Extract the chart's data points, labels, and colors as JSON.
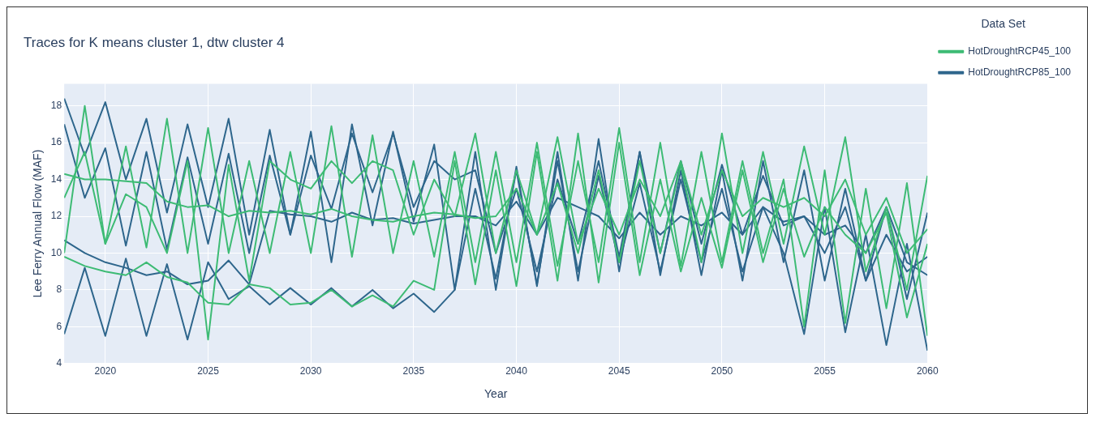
{
  "chart_data": {
    "type": "line",
    "title": "Traces for K means cluster 1, dtw cluster 4",
    "xlabel": "Year",
    "ylabel": "Lee Ferry Annual Flow (MAF)",
    "legend_title": "Data Set",
    "legend": "top right",
    "grid": true,
    "marker": "none",
    "line_style": "solid",
    "x": [
      2018,
      2019,
      2020,
      2021,
      2022,
      2023,
      2024,
      2025,
      2026,
      2027,
      2028,
      2029,
      2030,
      2031,
      2032,
      2033,
      2034,
      2035,
      2036,
      2037,
      2038,
      2039,
      2040,
      2041,
      2042,
      2043,
      2044,
      2045,
      2046,
      2047,
      2048,
      2049,
      2050,
      2051,
      2052,
      2053,
      2054,
      2055,
      2056,
      2057,
      2058,
      2059,
      2060
    ],
    "xlim": [
      2018,
      2060
    ],
    "xticks": [
      2020,
      2025,
      2030,
      2035,
      2040,
      2045,
      2050,
      2055,
      2060
    ],
    "ylim": [
      4,
      19.2
    ],
    "yticks": [
      4,
      6,
      8,
      10,
      12,
      14,
      16,
      18
    ],
    "series": [
      {
        "name": "HotDroughtRCP45_100",
        "color": "#3dbb74",
        "values": [
          10,
          18,
          10.5,
          15.8,
          10.3,
          17.3,
          10,
          16.8,
          10,
          15,
          10,
          15.5,
          10,
          16.9,
          9.8,
          16.4,
          10,
          15,
          9.8,
          15.5,
          9.5,
          15.5,
          9.5,
          16,
          9.3,
          15,
          9.5,
          16.8,
          9.5,
          16,
          9.3,
          15.5,
          9.5,
          15,
          10,
          14,
          6,
          14.5,
          6.2,
          13.5,
          7,
          13.8,
          5.5
        ]
      },
      {
        "color": "#3dbb74",
        "values": [
          14.3,
          14,
          14,
          13.9,
          13.8,
          12.8,
          12.5,
          12.6,
          12,
          12.3,
          12.2,
          12.3,
          12.1,
          12.4,
          12,
          11.8,
          11.7,
          12,
          12.2,
          12.1,
          11.9,
          12,
          13.5,
          11,
          13.8,
          10,
          14.5,
          9.5,
          15,
          10,
          14.8,
          9.5,
          16.5,
          10,
          15.5,
          10.5,
          15.8,
          11,
          16.3,
          9,
          12.5,
          8,
          14.2
        ]
      },
      {
        "color": "#3dbb74",
        "values": [
          9.8,
          9.3,
          9,
          8.8,
          9.5,
          8.7,
          8.4,
          7.3,
          7.2,
          8.3,
          8.1,
          7.2,
          7.3,
          8,
          7.1,
          7.7,
          7.1,
          8.5,
          8,
          15,
          8.3,
          14.5,
          8.2,
          15.5,
          8.5,
          16.5,
          8.4,
          16,
          8.8,
          14,
          9,
          13,
          9.2,
          14.5,
          9.5,
          13.5,
          9.8,
          12.5,
          11,
          10,
          12.2,
          6.5,
          10.5
        ]
      },
      {
        "color": "#3dbb74",
        "values": [
          13,
          15.5,
          10.5,
          13.2,
          12.5,
          10,
          15,
          5.3,
          14.8,
          8.5,
          15,
          14,
          13.5,
          15,
          13.8,
          15,
          14.5,
          11,
          14,
          12,
          16.5,
          10,
          14.5,
          11,
          16.3,
          10.5,
          13.5,
          11,
          14,
          12,
          15,
          11,
          14.5,
          12,
          13,
          12.5,
          13,
          12,
          14,
          11,
          13,
          10,
          11.3
        ]
      },
      {
        "name": "HotDroughtRCP85_100",
        "color": "#2e668c",
        "values": [
          18.4,
          15.3,
          18.2,
          14,
          17.3,
          12.2,
          17,
          12.5,
          17.3,
          11,
          16.7,
          11,
          16.6,
          9.5,
          17,
          11.5,
          16.6,
          11.7,
          15.9,
          8,
          15.5,
          8,
          14.7,
          8.2,
          15.5,
          8.5,
          16.2,
          9,
          15.5,
          8.8,
          14.5,
          8.8,
          14.5,
          8.5,
          15,
          9.5,
          14.5,
          8.5,
          13.5,
          8.5,
          12.5,
          7.5,
          12.2
        ]
      },
      {
        "color": "#2e668c",
        "values": [
          5.6,
          9.2,
          5.5,
          9.7,
          5.5,
          9.4,
          5.3,
          9.5,
          7.5,
          8.2,
          7.2,
          8.1,
          7.2,
          8.1,
          7.1,
          8,
          7,
          7.8,
          6.8,
          8,
          13.5,
          8.6,
          14.5,
          8.3,
          15,
          9,
          14.2,
          9.5,
          13.8,
          9,
          14,
          9.5,
          13.5,
          9,
          12.5,
          10,
          5.6,
          12.5,
          5.7,
          11,
          5,
          10.5,
          4.7
        ]
      },
      {
        "color": "#2e668c",
        "values": [
          17,
          13,
          15.7,
          10.4,
          15.5,
          10.2,
          15.2,
          10.5,
          15.4,
          10,
          15.3,
          11,
          15.3,
          12.4,
          16.5,
          13.3,
          16.5,
          12.5,
          15,
          14,
          14.5,
          10,
          13.5,
          9,
          14,
          10.5,
          15,
          9.8,
          15.5,
          10,
          15,
          10.5,
          14.8,
          11,
          14.2,
          11.5,
          12,
          10,
          12.5,
          8.5,
          11,
          9,
          9.8
        ]
      },
      {
        "color": "#2e668c",
        "values": [
          10.7,
          10,
          9.5,
          9.2,
          8.8,
          9,
          8.3,
          8.5,
          9.6,
          8.3,
          12.3,
          12.1,
          12,
          11.7,
          12.2,
          11.8,
          11.9,
          11.6,
          11.8,
          12,
          12,
          11.5,
          12.8,
          11,
          13,
          12.5,
          12,
          10.8,
          12.2,
          11,
          12,
          11.5,
          12.2,
          11,
          12.5,
          11.7,
          12,
          11,
          11.5,
          10,
          12.5,
          9.5,
          8.8
        ]
      }
    ]
  }
}
